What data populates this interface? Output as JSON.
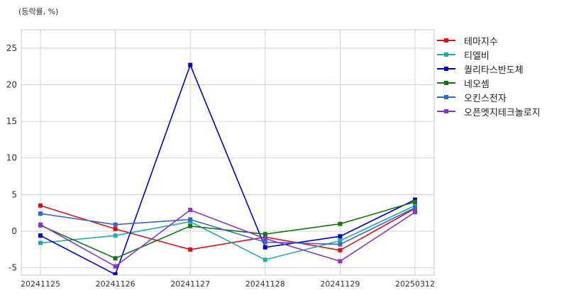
{
  "unit_label": "(등락률, %)",
  "chart_data": {
    "type": "line",
    "x": [
      "20241125",
      "20241126",
      "20241127",
      "20241128",
      "20241129",
      "20250312"
    ],
    "ylim": [
      -6,
      27.5
    ],
    "yticks": [
      -5,
      0,
      5,
      10,
      15,
      20,
      25
    ],
    "grid": true,
    "legend_position": "outside-right",
    "series": [
      {
        "name": "테마지수",
        "color": "#dd1111",
        "values": [
          3.5,
          0.3,
          -2.5,
          -0.8,
          -2.6,
          3.1
        ]
      },
      {
        "name": "티엘비",
        "color": "#22aaaa",
        "values": [
          -1.6,
          -0.6,
          1.3,
          -3.9,
          -1.3,
          3.5
        ]
      },
      {
        "name": "퀄리타스반도체",
        "color": "#0000cc",
        "values": [
          -0.6,
          -5.9,
          22.7,
          -2.2,
          -0.7,
          4.3
        ]
      },
      {
        "name": "네오셈",
        "color": "#117711",
        "values": [
          0.8,
          -3.7,
          0.7,
          -0.4,
          1.0,
          4.0
        ]
      },
      {
        "name": "오킨스전자",
        "color": "#3366cc",
        "values": [
          2.4,
          0.9,
          1.6,
          -1.5,
          -1.8,
          3.2
        ]
      },
      {
        "name": "오픈엣지테크놀로지",
        "color": "#8833cc",
        "values": [
          0.9,
          -4.8,
          2.9,
          -1.0,
          -4.1,
          2.6
        ]
      }
    ]
  }
}
